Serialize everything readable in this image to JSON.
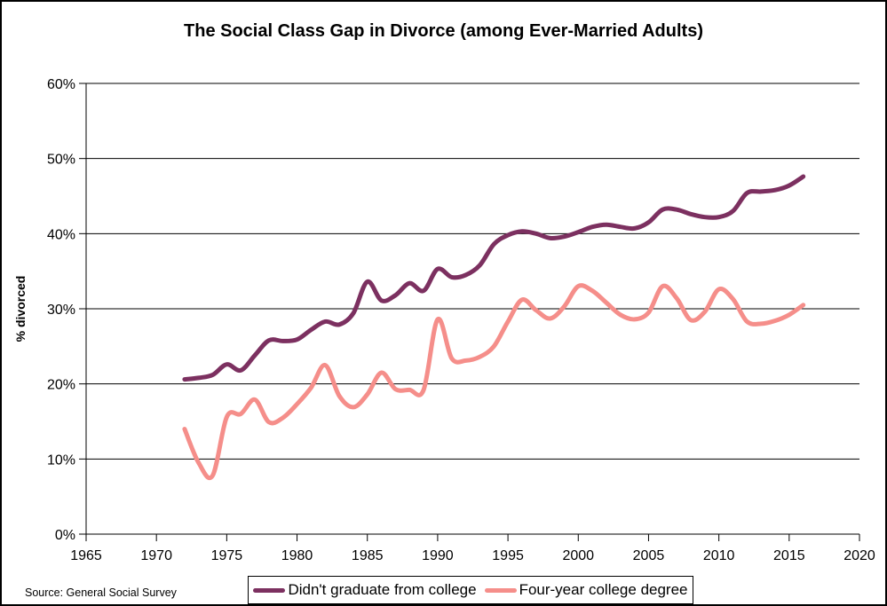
{
  "page": {
    "title": "The Social Class Gap in Divorce (among Ever-Married Adults)",
    "source": "Source: General Social Survey"
  },
  "legend": {
    "items": [
      {
        "label": "Didn't graduate from college",
        "color": "#7C3060"
      },
      {
        "label": "Four-year college degree",
        "color": "#F58E8A"
      }
    ]
  },
  "chart_data": {
    "type": "line",
    "title": "The Social Class Gap in Divorce (among Ever-Married Adults)",
    "xlabel": "",
    "ylabel": "% divorced",
    "xlim": [
      1965,
      2020
    ],
    "ylim": [
      0,
      60
    ],
    "x_ticks": [
      1965,
      1970,
      1975,
      1980,
      1985,
      1990,
      1995,
      2000,
      2005,
      2010,
      2015,
      2020
    ],
    "y_ticks": [
      0,
      10,
      20,
      30,
      40,
      50,
      60
    ],
    "y_tick_suffix": "%",
    "grid": "horizontal",
    "legend_position": "bottom",
    "line_smoothing": true,
    "x": [
      1972,
      1973,
      1974,
      1975,
      1976,
      1977,
      1978,
      1979,
      1980,
      1981,
      1982,
      1983,
      1984,
      1985,
      1986,
      1987,
      1988,
      1989,
      1990,
      1991,
      1992,
      1993,
      1994,
      1995,
      1996,
      1997,
      1998,
      1999,
      2000,
      2001,
      2002,
      2003,
      2004,
      2005,
      2006,
      2007,
      2008,
      2009,
      2010,
      2011,
      2012,
      2013,
      2014,
      2015,
      2016
    ],
    "series": [
      {
        "name": "Didn't graduate from college",
        "color": "#7C3060",
        "values": [
          20.6,
          20.8,
          21.2,
          22.6,
          21.8,
          23.8,
          25.8,
          25.7,
          25.9,
          27.2,
          28.3,
          27.9,
          29.4,
          33.6,
          31.1,
          31.8,
          33.4,
          32.4,
          35.3,
          34.2,
          34.5,
          35.8,
          38.6,
          39.8,
          40.3,
          40.0,
          39.4,
          39.6,
          40.2,
          40.9,
          41.2,
          40.9,
          40.7,
          41.5,
          43.2,
          43.2,
          42.6,
          42.2,
          42.2,
          43.0,
          45.4,
          45.6,
          45.8,
          46.4,
          47.6
        ]
      },
      {
        "name": "Four-year college degree",
        "color": "#F58E8A",
        "values": [
          14.0,
          9.5,
          7.8,
          15.6,
          16.0,
          17.9,
          14.9,
          15.5,
          17.3,
          19.5,
          22.5,
          18.4,
          16.9,
          18.6,
          21.5,
          19.3,
          19.2,
          19.2,
          28.6,
          23.4,
          23.1,
          23.6,
          25.0,
          28.3,
          31.2,
          29.8,
          28.7,
          30.3,
          33.0,
          32.4,
          30.8,
          29.2,
          28.6,
          29.5,
          33.0,
          31.4,
          28.5,
          29.6,
          32.6,
          31.3,
          28.3,
          28.0,
          28.4,
          29.2,
          30.5
        ]
      }
    ]
  }
}
